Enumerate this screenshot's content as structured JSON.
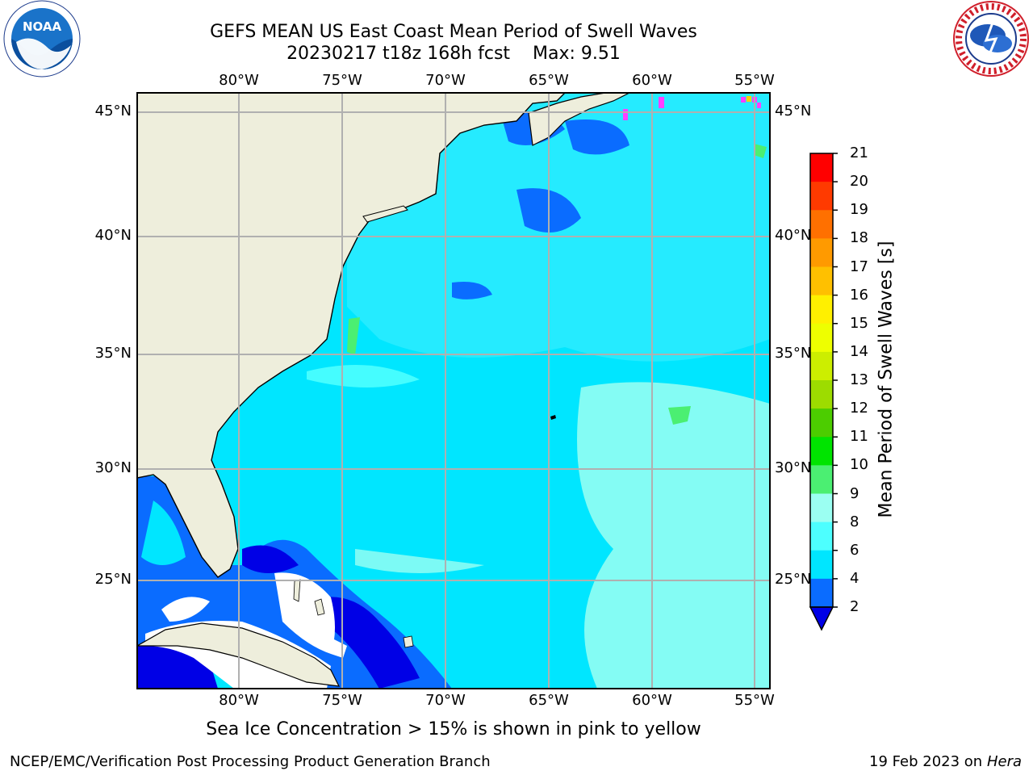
{
  "header": {
    "title": "GEFS MEAN US East Coast Mean Period of Swell Waves",
    "subtitle_run": "20230217 t18z 168h fcst",
    "subtitle_max": "Max: 9.51"
  },
  "logos": {
    "left": {
      "icon": "noaa-logo",
      "text": "NOAA"
    },
    "right": {
      "icon": "nws-logo",
      "text": "NATIONAL WEATHER SERVICE"
    }
  },
  "map": {
    "lon_labels": [
      "80°W",
      "75°W",
      "70°W",
      "65°W",
      "60°W",
      "55°W"
    ],
    "lat_labels": [
      "45°N",
      "40°N",
      "35°N",
      "30°N",
      "25°N"
    ],
    "colors": {
      "land": "#eeeedc",
      "grid": "#b0b0b0",
      "coast": "#000000"
    }
  },
  "colorbar": {
    "title": "Mean Period of Swell Waves [s]",
    "ticks": [
      "2",
      "4",
      "6",
      "8",
      "9",
      "10",
      "11",
      "12",
      "13",
      "14",
      "15",
      "16",
      "17",
      "18",
      "19",
      "20",
      "21"
    ],
    "colors": [
      "#0000e6",
      "#0a6cff",
      "#00e6ff",
      "#4dffff",
      "#9bfff2",
      "#4bef72",
      "#00e400",
      "#4ccd00",
      "#9ddc00",
      "#ccee00",
      "#eeff00",
      "#fff000",
      "#ffc000",
      "#ff9a00",
      "#ff7000",
      "#ff3a00",
      "#ff0000"
    ]
  },
  "caption": "Sea Ice Concentration > 15% is shown in pink to yellow",
  "footer": {
    "left": "NCEP/EMC/Verification Post Processing Product Generation Branch",
    "right_date": "19 Feb 2023 on",
    "right_machine": "Hera"
  }
}
